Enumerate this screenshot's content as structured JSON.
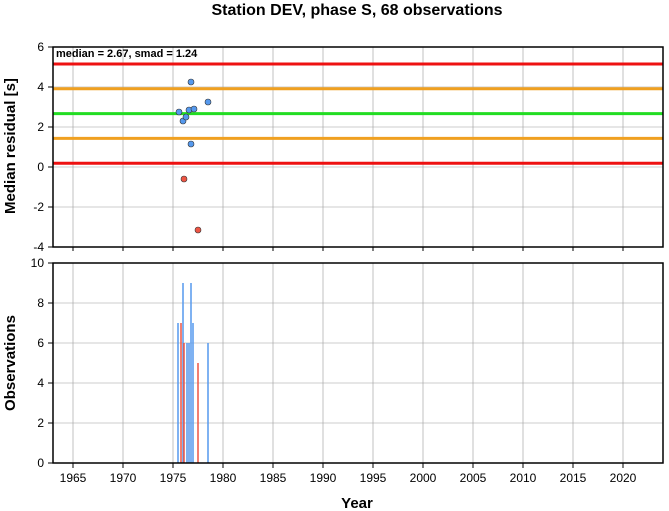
{
  "chart_data": [
    {
      "type": "scatter",
      "title": "Station DEV, phase S, 68 observations",
      "xlabel": "",
      "ylabel": "Median residual [s]",
      "xlim": [
        1963,
        2024
      ],
      "ylim": [
        -4,
        6
      ],
      "yticks": [
        -4,
        -2,
        0,
        2,
        4,
        6
      ],
      "grid": true,
      "annotation": "median = 2.67, smad = 1.24",
      "reference_lines": [
        {
          "y": 5.15,
          "color": "#ee1111"
        },
        {
          "y": 3.91,
          "color": "#f0a020"
        },
        {
          "y": 2.67,
          "color": "#22dd22"
        },
        {
          "y": 1.43,
          "color": "#f0a020"
        },
        {
          "y": 0.19,
          "color": "#ee1111"
        }
      ],
      "series": [
        {
          "color": "#5599ee",
          "points": [
            {
              "x": 1975.6,
              "y": 2.75
            },
            {
              "x": 1976.0,
              "y": 2.3
            },
            {
              "x": 1976.3,
              "y": 2.5
            },
            {
              "x": 1976.6,
              "y": 2.85
            },
            {
              "x": 1976.8,
              "y": 4.25
            },
            {
              "x": 1976.8,
              "y": 1.15
            },
            {
              "x": 1977.1,
              "y": 2.9
            },
            {
              "x": 1978.5,
              "y": 3.25
            }
          ]
        },
        {
          "color": "#ee5544",
          "points": [
            {
              "x": 1976.1,
              "y": -0.6
            },
            {
              "x": 1977.5,
              "y": -3.15
            }
          ]
        }
      ]
    },
    {
      "type": "bar",
      "xlabel": "Year",
      "ylabel": "Observations",
      "xlim": [
        1963,
        2024
      ],
      "ylim": [
        0,
        10
      ],
      "yticks": [
        0,
        2,
        4,
        6,
        8,
        10
      ],
      "xticks": [
        1965,
        1970,
        1975,
        1980,
        1985,
        1990,
        1995,
        2000,
        2005,
        2010,
        2015,
        2020
      ],
      "grid": true,
      "bars": [
        {
          "x": 1975.5,
          "value": 7,
          "color": "#5599ee"
        },
        {
          "x": 1975.8,
          "value": 7,
          "color": "#ee5544"
        },
        {
          "x": 1976.0,
          "value": 9,
          "color": "#5599ee"
        },
        {
          "x": 1976.1,
          "value": 6,
          "color": "#ee5544"
        },
        {
          "x": 1976.4,
          "value": 6,
          "color": "#5599ee"
        },
        {
          "x": 1976.6,
          "value": 6,
          "color": "#5599ee"
        },
        {
          "x": 1976.8,
          "value": 9,
          "color": "#5599ee"
        },
        {
          "x": 1977.0,
          "value": 7,
          "color": "#5599ee"
        },
        {
          "x": 1977.5,
          "value": 5,
          "color": "#ee5544"
        },
        {
          "x": 1978.5,
          "value": 6,
          "color": "#5599ee"
        }
      ]
    }
  ]
}
